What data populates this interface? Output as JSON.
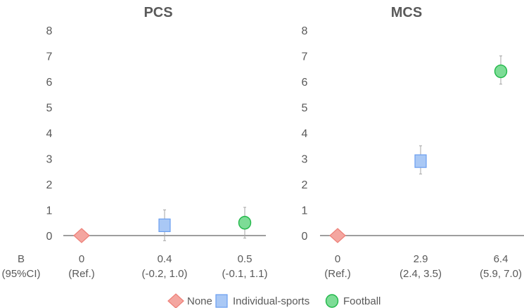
{
  "chart_data": [
    {
      "type": "scatter",
      "title": "PCS",
      "ylim": [
        0,
        8
      ],
      "yticks": [
        "0",
        "1",
        "2",
        "3",
        "4",
        "5",
        "6",
        "7",
        "8"
      ],
      "row_label": [
        "B",
        "(95%CI)"
      ],
      "points": [
        {
          "group": "None",
          "value": 0,
          "ci": null,
          "label": "0",
          "ci_label": "(Ref.)"
        },
        {
          "group": "Individual-sports",
          "value": 0.4,
          "ci": [
            -0.2,
            1.0
          ],
          "label": "0.4",
          "ci_label": "(-0.2, 1.0)"
        },
        {
          "group": "Football",
          "value": 0.5,
          "ci": [
            -0.1,
            1.1
          ],
          "label": "0.5",
          "ci_label": "(-0.1, 1.1)"
        }
      ]
    },
    {
      "type": "scatter",
      "title": "MCS",
      "ylim": [
        0,
        8
      ],
      "yticks": [
        "0",
        "1",
        "2",
        "3",
        "4",
        "5",
        "6",
        "7",
        "8"
      ],
      "points": [
        {
          "group": "None",
          "value": 0,
          "ci": null,
          "label": "0",
          "ci_label": "(Ref.)"
        },
        {
          "group": "Individual-sports",
          "value": 2.9,
          "ci": [
            2.4,
            3.5
          ],
          "label": "2.9",
          "ci_label": "(2.4, 3.5)"
        },
        {
          "group": "Football",
          "value": 6.4,
          "ci": [
            5.9,
            7.0
          ],
          "label": "6.4",
          "ci_label": "(5.9, 7.0)"
        }
      ]
    }
  ],
  "legend": [
    {
      "label": "None",
      "marker": "diamond",
      "fill": "#f4a6a0",
      "stroke": "#ee7f77"
    },
    {
      "label": "Individual-sports",
      "marker": "square",
      "fill": "#a9c8f5",
      "stroke": "#6a9ef0"
    },
    {
      "label": "Football",
      "marker": "circle",
      "fill": "#7ddc96",
      "stroke": "#22b84a"
    }
  ]
}
